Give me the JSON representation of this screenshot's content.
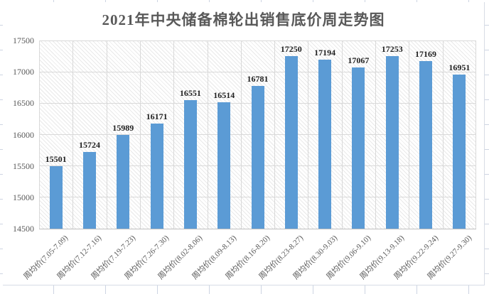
{
  "colors": {
    "bar": "#5B9BD5",
    "gridline": "#D9D9D9",
    "axis_line": "#BFBFBF",
    "title_text": "#595959",
    "tick_text": "#595959",
    "data_label_text": "#1F1F1F",
    "sheet_grid": "#CDD4E2"
  },
  "chart_data": {
    "type": "bar",
    "title": "2021年中央储备棉轮出销售底价周走势图",
    "categories": [
      "周均价(7.05-7.09)",
      "周均价(7.12-7.16)",
      "周均价(7.19-7.23)",
      "周均价(7.26-7.30)",
      "周均价(8.02-8.06)",
      "周均价(8.09-8.13)",
      "周均价(8.16-8.20)",
      "周均价(8.23-8.27)",
      "周均价(8.30-9.03)",
      "周均价(9.06-9.10)",
      "周均价(9.13-9.18)",
      "周均价(9.22-9.24)",
      "周均价(9.27-9.30)"
    ],
    "values": [
      15501,
      15724,
      15989,
      16171,
      16551,
      16514,
      16781,
      17250,
      17194,
      17067,
      17253,
      17169,
      16951
    ],
    "yticks": [
      17500,
      17000,
      16500,
      16000,
      15500,
      15000,
      14500
    ],
    "ylim": [
      14500,
      17500
    ],
    "xlabel": "",
    "ylabel": "",
    "grid": true,
    "data_labels": true,
    "legend": "none",
    "plot_area_fill": "light-diagonal-hatch"
  }
}
